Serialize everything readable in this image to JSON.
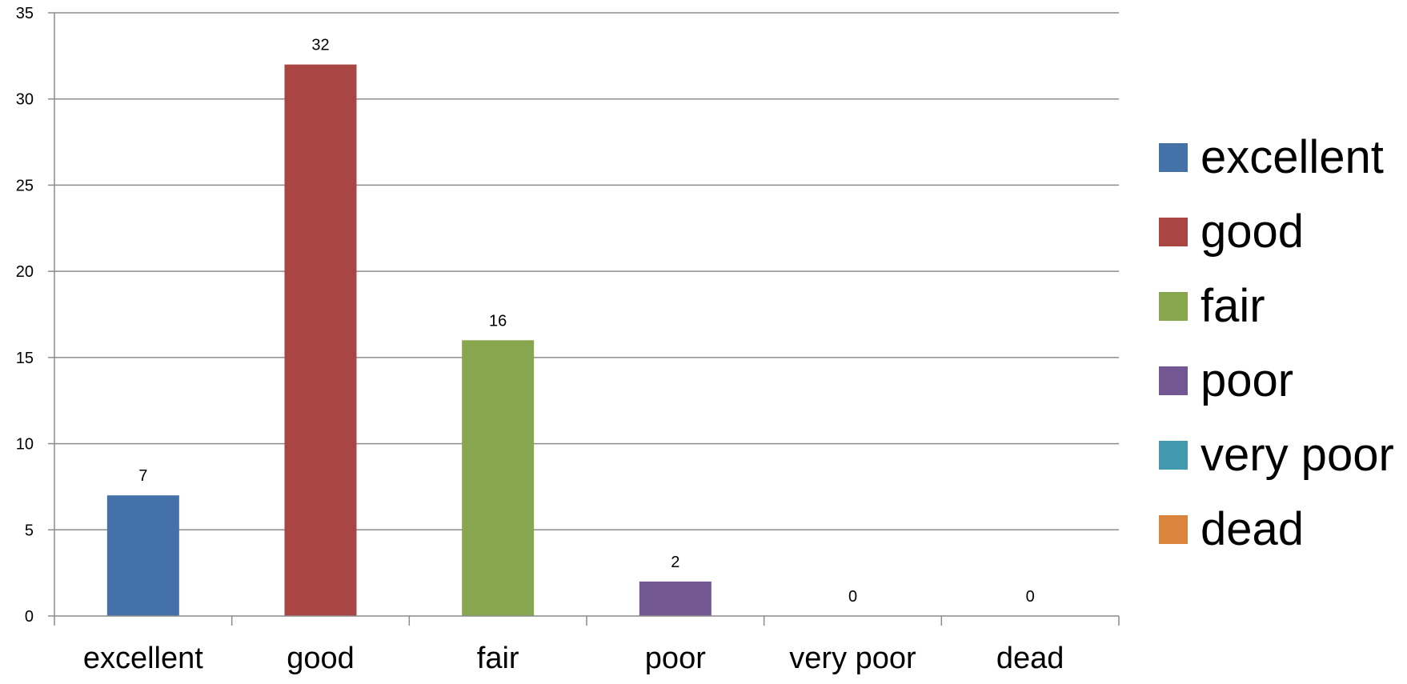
{
  "chart_data": {
    "type": "bar",
    "categories": [
      "excellent",
      "good",
      "fair",
      "poor",
      "very poor",
      "dead"
    ],
    "values": [
      7,
      32,
      16,
      2,
      0,
      0
    ],
    "colors": [
      "#4472a8",
      "#a94643",
      "#88a64e",
      "#725793",
      "#4198af",
      "#db843d"
    ],
    "title": "",
    "xlabel": "",
    "ylabel": "",
    "ylim": [
      0,
      35
    ],
    "yticks": [
      "0",
      "5",
      "10",
      "15",
      "20",
      "25",
      "30",
      "35"
    ],
    "data_labels": [
      "7",
      "32",
      "16",
      "2",
      "0",
      "0"
    ],
    "grid": true,
    "legend_position": "right"
  }
}
